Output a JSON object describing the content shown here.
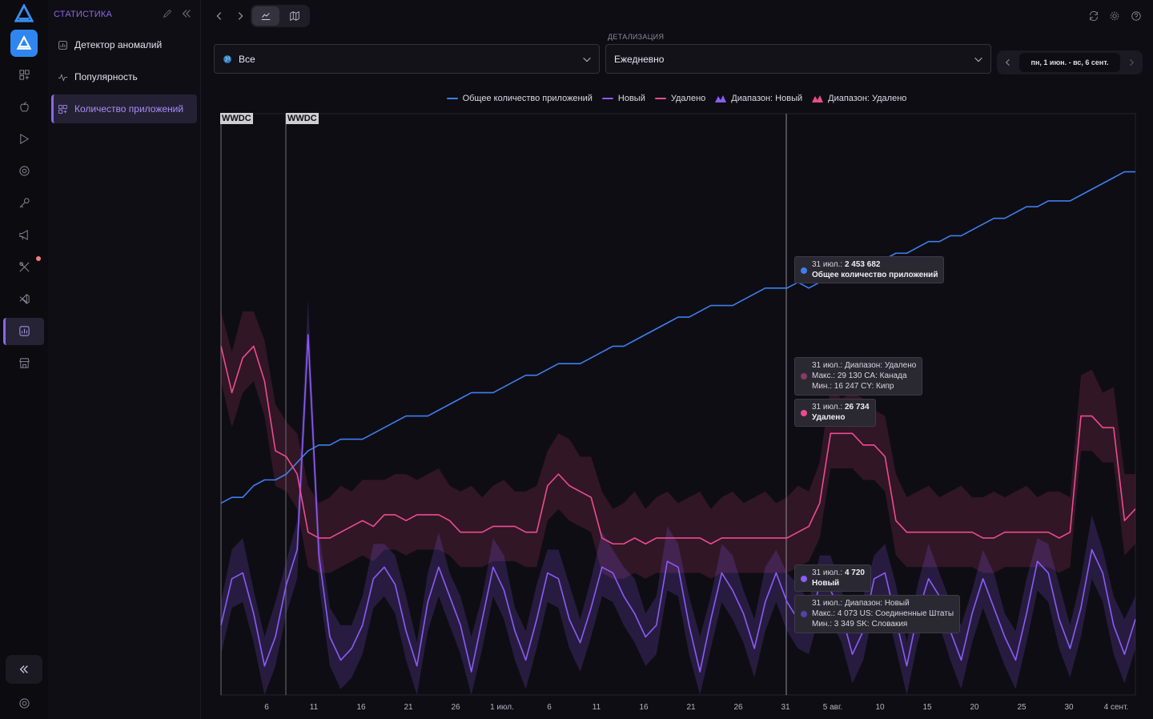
{
  "sidebar": {
    "title": "Статистика",
    "items": [
      {
        "label": "Детектор аномалий",
        "icon": "chart-box-icon"
      },
      {
        "label": "Популярность",
        "icon": "pulse-icon"
      },
      {
        "label": "Количество приложений",
        "icon": "grid-plus-icon"
      }
    ]
  },
  "filters": {
    "region": "Все",
    "detail_label": "Детализация",
    "detail": "Ежедневно",
    "date_range": "пн, 1 июн. - вс, 6 сент."
  },
  "legend": [
    {
      "label": "Общее количество приложений",
      "color": "#3d7fef",
      "kind": "line"
    },
    {
      "label": "Новый",
      "color": "#8b5cf6",
      "kind": "line"
    },
    {
      "label": "Удалено",
      "color": "#ec4c8f",
      "kind": "line"
    },
    {
      "label": "Диапазон: Новый",
      "color": "#8b5cf6",
      "kind": "range"
    },
    {
      "label": "Диапазон: Удалено",
      "color": "#ec4c8f",
      "kind": "range"
    }
  ],
  "events": [
    "WWDC",
    "WWDC"
  ],
  "tooltips": {
    "total": {
      "date": "31 июл.:",
      "value": "2 453 682",
      "label": "Общее количество приложений"
    },
    "removed_range": {
      "line1": "31 июл.: Диапазон: Удалено",
      "line2": "Макс.: 29 130 CA: Канада",
      "line3": "Мин.: 16 247 CY: Кипр"
    },
    "removed": {
      "date": "31 июл.:",
      "value": "26 734",
      "label": "Удалено"
    },
    "new": {
      "date": "31 июл.:",
      "value": "4 720",
      "label": "Новый"
    },
    "new_range": {
      "line1": "31 июл.: Диапазон: Новый",
      "line2": "Макс.: 4 073 US: Соединенные Штаты",
      "line3": "Мин.: 3 349 SK: Словакия"
    }
  },
  "chart_data": {
    "type": "line",
    "x_ticks": [
      "6",
      "11",
      "16",
      "21",
      "26",
      "1 июл.",
      "6",
      "11",
      "16",
      "21",
      "26",
      "31",
      "5 авг.",
      "10",
      "15",
      "20",
      "25",
      "30",
      "4 сент."
    ],
    "series": [
      {
        "name": "Общее количество приложений",
        "color": "#3d7fef",
        "values": [
          0.33,
          0.34,
          0.34,
          0.36,
          0.37,
          0.37,
          0.38,
          0.4,
          0.42,
          0.43,
          0.43,
          0.44,
          0.44,
          0.44,
          0.45,
          0.46,
          0.47,
          0.48,
          0.48,
          0.48,
          0.49,
          0.5,
          0.51,
          0.52,
          0.52,
          0.52,
          0.53,
          0.54,
          0.55,
          0.55,
          0.56,
          0.57,
          0.57,
          0.57,
          0.58,
          0.59,
          0.6,
          0.6,
          0.61,
          0.62,
          0.63,
          0.64,
          0.65,
          0.65,
          0.66,
          0.67,
          0.67,
          0.67,
          0.68,
          0.69,
          0.7,
          0.7,
          0.7,
          0.71,
          0.7,
          0.71,
          0.71,
          0.72,
          0.73,
          0.74,
          0.75,
          0.75,
          0.76,
          0.76,
          0.77,
          0.78,
          0.78,
          0.79,
          0.79,
          0.8,
          0.81,
          0.82,
          0.82,
          0.83,
          0.84,
          0.84,
          0.85,
          0.85,
          0.85,
          0.86,
          0.87,
          0.88,
          0.89,
          0.9,
          0.9
        ]
      },
      {
        "name": "Новый",
        "color": "#8b5cf6",
        "values": [
          0.12,
          0.2,
          0.21,
          0.14,
          0.05,
          0.1,
          0.19,
          0.25,
          0.62,
          0.24,
          0.1,
          0.06,
          0.08,
          0.12,
          0.2,
          0.22,
          0.19,
          0.11,
          0.05,
          0.16,
          0.22,
          0.17,
          0.12,
          0.04,
          0.13,
          0.22,
          0.18,
          0.11,
          0.06,
          0.13,
          0.21,
          0.2,
          0.13,
          0.09,
          0.15,
          0.22,
          0.21,
          0.17,
          0.14,
          0.1,
          0.12,
          0.23,
          0.22,
          0.12,
          0.04,
          0.13,
          0.21,
          0.18,
          0.14,
          0.08,
          0.16,
          0.21,
          0.16,
          0.13,
          0.12,
          0.19,
          0.18,
          0.14,
          0.07,
          0.11,
          0.2,
          0.21,
          0.13,
          0.05,
          0.14,
          0.2,
          0.17,
          0.11,
          0.06,
          0.14,
          0.2,
          0.15,
          0.1,
          0.06,
          0.14,
          0.23,
          0.21,
          0.13,
          0.08,
          0.15,
          0.25,
          0.21,
          0.12,
          0.07,
          0.13
        ]
      },
      {
        "name": "Удалено",
        "color": "#ec4c8f",
        "values": [
          0.6,
          0.52,
          0.58,
          0.6,
          0.54,
          0.42,
          0.41,
          0.38,
          0.28,
          0.27,
          0.27,
          0.28,
          0.29,
          0.3,
          0.29,
          0.31,
          0.31,
          0.3,
          0.31,
          0.31,
          0.31,
          0.3,
          0.28,
          0.28,
          0.28,
          0.29,
          0.29,
          0.29,
          0.28,
          0.28,
          0.36,
          0.38,
          0.36,
          0.35,
          0.34,
          0.27,
          0.26,
          0.26,
          0.27,
          0.26,
          0.27,
          0.27,
          0.27,
          0.27,
          0.27,
          0.26,
          0.27,
          0.27,
          0.27,
          0.27,
          0.27,
          0.27,
          0.27,
          0.28,
          0.29,
          0.33,
          0.45,
          0.45,
          0.45,
          0.43,
          0.43,
          0.41,
          0.3,
          0.28,
          0.28,
          0.28,
          0.28,
          0.28,
          0.28,
          0.28,
          0.27,
          0.27,
          0.28,
          0.28,
          0.28,
          0.28,
          0.28,
          0.27,
          0.28,
          0.48,
          0.48,
          0.46,
          0.46,
          0.3,
          0.32
        ]
      },
      {
        "name": "Диапазон: Новый",
        "color": "#8b5cf6",
        "kind": "range"
      },
      {
        "name": "Диапазон: Удалено",
        "color": "#ec4c8f",
        "kind": "range"
      }
    ]
  }
}
